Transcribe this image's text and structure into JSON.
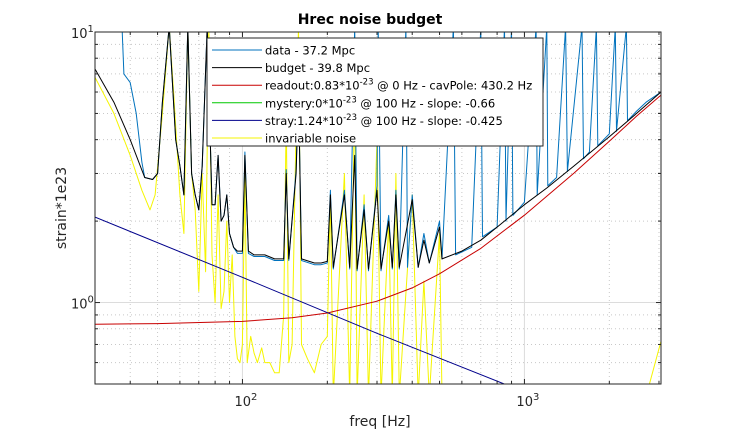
{
  "chart_data": {
    "type": "line",
    "title": "Hrec noise budget",
    "xlabel": "freq [Hz]",
    "ylabel": "strain*1e23",
    "xscale": "log",
    "yscale": "log",
    "xlim": [
      30,
      3050
    ],
    "ylim": [
      0.5,
      10
    ],
    "grid": true,
    "legend_position": "top-center",
    "x_ticks": [
      {
        "base": "10",
        "exp": "2",
        "value": 100
      },
      {
        "base": "10",
        "exp": "3",
        "value": 1000
      }
    ],
    "y_ticks": [
      {
        "base": "10",
        "exp": "0",
        "value": 1
      },
      {
        "base": "10",
        "exp": "1",
        "value": 10
      }
    ],
    "series": [
      {
        "name": "data - 37.2 Mpc",
        "color": "#0072BD",
        "x": [
          37.4,
          38,
          40,
          42,
          44,
          45,
          48,
          50,
          52,
          55,
          58,
          60,
          62,
          64,
          66,
          68,
          70,
          72,
          75,
          78,
          80,
          82,
          84,
          86,
          88,
          90,
          93,
          96,
          100,
          102,
          105,
          110,
          120,
          130,
          140,
          143,
          146,
          155,
          158,
          162,
          180,
          190,
          200,
          205,
          210,
          230,
          240,
          250,
          255,
          270,
          280,
          300,
          303,
          310,
          330,
          340,
          350,
          360,
          380,
          385,
          400,
          420,
          440,
          460,
          500,
          510,
          560,
          570,
          650,
          700,
          710,
          800,
          850,
          860,
          900,
          910,
          1000,
          1100,
          1110,
          1200,
          1210,
          1300,
          1400,
          1420,
          1600,
          1620,
          1700,
          1800,
          1820,
          2000,
          2100,
          2120,
          2300,
          2320,
          2500,
          2700,
          3050
        ],
        "y": [
          10.5,
          7,
          6.5,
          5,
          3.3,
          2.9,
          2.85,
          3.0,
          5.5,
          10.5,
          4,
          3.2,
          2.5,
          10.5,
          3,
          2.5,
          2.2,
          3.2,
          10.5,
          2.3,
          2.3,
          3.5,
          2.0,
          2.1,
          2.5,
          1.8,
          1.6,
          1.52,
          1.52,
          3.6,
          1.52,
          1.48,
          1.48,
          1.43,
          1.43,
          3.1,
          1.43,
          3.1,
          6.2,
          1.43,
          1.38,
          1.38,
          1.4,
          2.6,
          1.33,
          2.6,
          1.33,
          10.5,
          1.31,
          2.3,
          1.31,
          2.7,
          10.5,
          1.31,
          2.1,
          1.33,
          2.6,
          1.33,
          10.5,
          1.35,
          2.5,
          1.35,
          1.8,
          1.4,
          2.0,
          1.45,
          10.5,
          1.5,
          1.6,
          10.5,
          1.75,
          1.9,
          10.5,
          2.0,
          10.5,
          2.1,
          2.35,
          10.5,
          2.5,
          10.5,
          2.7,
          2.9,
          10.5,
          3.05,
          10.5,
          3.4,
          3.6,
          10.5,
          3.8,
          4.2,
          10.5,
          4.3,
          10.5,
          4.7,
          5.1,
          5.5,
          6.0
        ]
      },
      {
        "name": "budget - 39.8 Mpc",
        "color": "#000000",
        "x": [
          30,
          35,
          40,
          45,
          48,
          50,
          52,
          55,
          58,
          60,
          62,
          64,
          66,
          68,
          70,
          72,
          75,
          78,
          80,
          82,
          84,
          86,
          88,
          90,
          93,
          96,
          100,
          102,
          105,
          110,
          120,
          130,
          140,
          143,
          146,
          155,
          158,
          162,
          180,
          190,
          200,
          205,
          210,
          230,
          240,
          250,
          255,
          270,
          280,
          300,
          310,
          330,
          340,
          350,
          360,
          400,
          420,
          440,
          460,
          500,
          510,
          600,
          700,
          800,
          1000,
          1200,
          1500,
          2000,
          2500,
          3050
        ],
        "y": [
          7.3,
          5.5,
          4.0,
          2.9,
          2.85,
          3.0,
          5.5,
          10.5,
          4,
          3.2,
          2.5,
          10.5,
          3,
          2.5,
          2.2,
          3.2,
          10.5,
          2.3,
          2.3,
          3.5,
          2.0,
          2.1,
          2.5,
          1.8,
          1.6,
          1.55,
          1.55,
          3.5,
          1.55,
          1.5,
          1.5,
          1.45,
          1.45,
          3,
          1.45,
          3,
          6,
          1.45,
          1.4,
          1.4,
          1.42,
          2.5,
          1.35,
          2.5,
          1.35,
          3.5,
          1.33,
          2.2,
          1.33,
          2.6,
          1.33,
          2,
          1.35,
          2.5,
          1.35,
          2.4,
          1.35,
          1.7,
          1.4,
          1.9,
          1.45,
          1.55,
          1.7,
          1.9,
          2.3,
          2.65,
          3.2,
          4.1,
          5.0,
          6.0
        ]
      },
      {
        "name": "readout:0.83*10^-23 @ 0 Hz - cavPole: 430.2 Hz",
        "label_main": "readout:0.83*10",
        "label_exp": "-23",
        "label_rest": " @ 0 Hz - cavPole: 430.2 Hz",
        "color": "#C80000",
        "x": [
          30,
          50,
          100,
          150,
          200,
          300,
          400,
          500,
          700,
          1000,
          1500,
          2000,
          2500,
          3050
        ],
        "y": [
          0.832,
          0.836,
          0.852,
          0.879,
          0.915,
          1.012,
          1.133,
          1.277,
          1.585,
          2.103,
          3.011,
          3.945,
          4.889,
          5.845
        ]
      },
      {
        "name": "mystery:0*10^-23 @ 100 Hz - slope: -0.66",
        "label_main": "mystery:0*10",
        "label_exp": "-23",
        "label_rest": " @ 100 Hz - slope: -0.66",
        "color": "#00C800",
        "x": [],
        "y": []
      },
      {
        "name": "stray:1.24*10^-23 @ 100 Hz - slope: -0.425",
        "label_main": "stray:1.24*10",
        "label_exp": "-23",
        "label_rest": " @ 100 Hz - slope: -0.425",
        "color": "#00008B",
        "x": [
          30,
          100,
          300,
          1000
        ],
        "y": [
          2.07,
          1.24,
          0.77,
          0.467
        ]
      },
      {
        "name": "invariable noise",
        "color": "#F5F500",
        "x": [
          30,
          35,
          40,
          44,
          47,
          49,
          52,
          55,
          57,
          60,
          62,
          64,
          66,
          68,
          70,
          72,
          74,
          76,
          78,
          80,
          82,
          84,
          86,
          88,
          90,
          92,
          94,
          96,
          98,
          100,
          102,
          104,
          107,
          110,
          113,
          117,
          120,
          125,
          130,
          135,
          140,
          143,
          146,
          150,
          155,
          158,
          162,
          170,
          180,
          190,
          200,
          205,
          210,
          230,
          240,
          250,
          255,
          270,
          280,
          300,
          310,
          330,
          340,
          350,
          360,
          400,
          420,
          440,
          460,
          500,
          510,
          2700,
          3050
        ],
        "y": [
          6.8,
          5.0,
          3.5,
          2.6,
          2.2,
          2.5,
          5,
          10.5,
          6,
          2.5,
          1.8,
          10.5,
          3,
          2.2,
          1.1,
          3,
          1.3,
          10.5,
          1.5,
          1.0,
          2.5,
          0.95,
          1.1,
          2.0,
          1.0,
          1.5,
          0.75,
          0.62,
          0.6,
          0.7,
          3,
          0.6,
          0.75,
          0.65,
          0.6,
          0.68,
          0.6,
          0.6,
          0.55,
          0.55,
          0.9,
          5,
          0.6,
          0.7,
          4.5,
          10.5,
          0.7,
          0.62,
          0.55,
          0.7,
          0.75,
          2.5,
          0.45,
          3,
          0.45,
          6,
          0.45,
          2.5,
          0.45,
          4,
          0.45,
          2,
          0.45,
          3,
          0.45,
          2.5,
          0.45,
          1.2,
          0.45,
          1.8,
          0.45,
          0.45,
          0.72
        ]
      }
    ]
  }
}
